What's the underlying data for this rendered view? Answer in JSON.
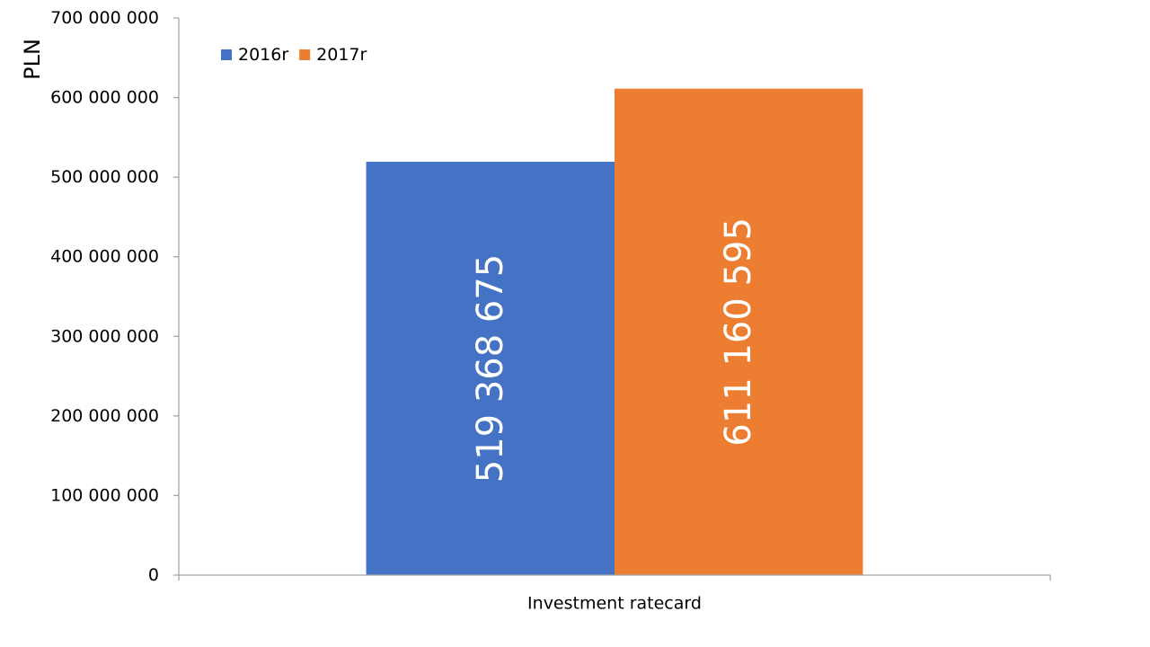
{
  "chart_data": {
    "type": "bar",
    "categories": [
      "Investment ratecard"
    ],
    "series": [
      {
        "name": "2016r",
        "values": [
          519368675
        ],
        "value_label": "519 368 675",
        "color": "#4472C4"
      },
      {
        "name": "2017r",
        "values": [
          611160595
        ],
        "value_label": "611 160 595",
        "color": "#ED7D31"
      }
    ],
    "ylabel": "PLN",
    "xlabel": "",
    "ylim": [
      0,
      700000000
    ],
    "yticks": [
      {
        "value": 0,
        "label": "0"
      },
      {
        "value": 100000000,
        "label": "100 000 000"
      },
      {
        "value": 200000000,
        "label": "200 000 000"
      },
      {
        "value": 300000000,
        "label": "300 000 000"
      },
      {
        "value": 400000000,
        "label": "400 000 000"
      },
      {
        "value": 500000000,
        "label": "500 000 000"
      },
      {
        "value": 600000000,
        "label": "600 000 000"
      },
      {
        "value": 700000000,
        "label": "700 000 000"
      }
    ],
    "grid": false,
    "legend_position": "top-left"
  }
}
